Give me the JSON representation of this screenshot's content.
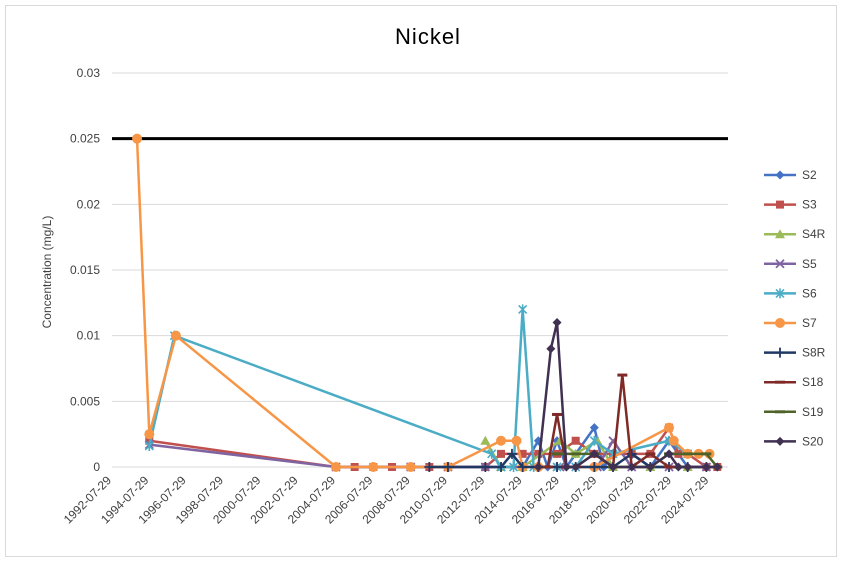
{
  "chart_data": {
    "type": "line",
    "title": "Nickel",
    "xlabel": "",
    "ylabel": "Concentration (mg/L)",
    "ylim": [
      0,
      0.03
    ],
    "yticks": [
      "0",
      "0.005",
      "0.01",
      "0.015",
      "0.02",
      "0.025",
      "0.03"
    ],
    "xlim": [
      "1992-07-29",
      "2025-07-29"
    ],
    "xticks": [
      "1992-07-29",
      "1994-07-29",
      "1996-07-29",
      "1998-07-29",
      "2000-07-29",
      "2002-07-29",
      "2004-07-29",
      "2006-07-29",
      "2008-07-29",
      "2010-07-29",
      "2012-07-29",
      "2014-07-29",
      "2016-07-29",
      "2018-07-29",
      "2020-07-29",
      "2022-07-29",
      "2024-07-29"
    ],
    "gridlines": "horizontal",
    "legend_position": "right",
    "reference_line": {
      "y": 0.025,
      "color": "#000000"
    },
    "series": [
      {
        "name": "S2",
        "color": "#4472c4",
        "marker": "diamond",
        "x": [
          "2004-07-29",
          "2006-07-29",
          "2008-07-29",
          "2010-07-29",
          "2012-07-29",
          "2014-07-29",
          "2015-06-01",
          "2015-12-01",
          "2016-06-01",
          "2016-12-01",
          "2017-06-01",
          "2018-06-01",
          "2018-12-01",
          "2019-06-01",
          "2020-06-01",
          "2021-06-01",
          "2022-06-01",
          "2022-12-01",
          "2023-06-01",
          "2024-06-01",
          "2025-01-01"
        ],
        "y": [
          0,
          0,
          0,
          0,
          0,
          0,
          0.002,
          0,
          0.002,
          0,
          0.001,
          0.003,
          0,
          0.001,
          0.001,
          0,
          0.002,
          0.001,
          0,
          0,
          0
        ]
      },
      {
        "name": "S3",
        "color": "#c0504d",
        "marker": "square",
        "x": [
          "1994-07-29",
          "2004-07-29",
          "2005-07-29",
          "2006-07-29",
          "2007-07-29",
          "2008-07-29",
          "2009-07-29",
          "2012-07-29",
          "2013-06-01",
          "2014-07-29",
          "2015-06-01",
          "2016-06-01",
          "2017-06-01",
          "2018-06-01",
          "2019-06-01",
          "2020-06-01",
          "2021-06-01",
          "2022-06-01",
          "2022-12-01",
          "2023-06-01",
          "2024-06-01",
          "2025-01-01"
        ],
        "y": [
          0.002,
          0,
          0,
          0,
          0,
          0,
          0,
          0,
          0.001,
          0.001,
          0.001,
          0.001,
          0.002,
          0.001,
          0.001,
          0.001,
          0.001,
          0.003,
          0.001,
          0.001,
          0,
          0
        ]
      },
      {
        "name": "S4R",
        "color": "#9bbb59",
        "marker": "triangle",
        "x": [
          "2012-07-29",
          "2013-06-01",
          "2014-07-29",
          "2016-07-29",
          "2017-06-01",
          "2018-07-29",
          "2019-06-01",
          "2021-06-01",
          "2023-06-01"
        ],
        "y": [
          0.002,
          0,
          0,
          0.002,
          0.001,
          0.002,
          0,
          0,
          0
        ]
      },
      {
        "name": "S5",
        "color": "#8064a2",
        "marker": "x",
        "x": [
          "1994-07-29",
          "2004-07-29",
          "2008-07-29",
          "2010-07-29",
          "2012-07-29",
          "2016-07-29",
          "2018-07-29",
          "2019-06-01",
          "2020-06-01",
          "2022-06-01",
          "2024-06-01"
        ],
        "y": [
          0.0017,
          0,
          0,
          0,
          0,
          0,
          0,
          0.002,
          0,
          0,
          0
        ]
      },
      {
        "name": "S6",
        "color": "#4bacc6",
        "marker": "asterisk",
        "x": [
          "1994-07-29",
          "1995-12-01",
          "2012-12-01",
          "2013-06-01",
          "2014-02-01",
          "2014-07-29",
          "2015-03-01",
          "2016-06-01",
          "2017-06-01",
          "2018-06-01",
          "2019-06-01",
          "2022-06-01",
          "2023-06-01"
        ],
        "y": [
          0.0016,
          0.01,
          0.001,
          0,
          0,
          0.012,
          0,
          0,
          0,
          0.002,
          0.001,
          0.002,
          0.001
        ]
      },
      {
        "name": "S7",
        "color": "#f79646",
        "marker": "circle",
        "x": [
          "1993-12-01",
          "1994-07-29",
          "1996-01-01",
          "2004-07-29",
          "2006-07-29",
          "2008-07-29",
          "2010-07-29",
          "2013-06-01",
          "2014-04-01",
          "2014-07-29",
          "2015-06-01",
          "2018-06-01",
          "2022-06-01",
          "2022-09-01",
          "2023-06-01",
          "2024-01-01",
          "2024-08-01"
        ],
        "y": [
          0.025,
          0.0025,
          0.01,
          0,
          0,
          0,
          0,
          0.002,
          0.002,
          0,
          0,
          0,
          0.003,
          0.002,
          0.001,
          0.001,
          0.001
        ]
      },
      {
        "name": "S8R",
        "color": "#1f3864",
        "marker": "plus",
        "x": [
          "2009-07-29",
          "2010-07-29",
          "2012-07-29",
          "2013-06-01",
          "2014-01-01",
          "2014-07-29",
          "2015-06-01",
          "2016-06-01",
          "2017-06-01",
          "2018-06-01",
          "2019-06-01",
          "2020-06-01",
          "2021-06-01",
          "2022-06-01",
          "2023-06-01",
          "2024-06-01"
        ],
        "y": [
          0,
          0,
          0,
          0,
          0.001,
          0,
          0,
          0,
          0,
          0,
          0,
          0.001,
          0,
          0,
          0,
          0
        ]
      },
      {
        "name": "S18",
        "color": "#7f2a26",
        "marker": "dash",
        "x": [
          "2015-12-01",
          "2016-06-01",
          "2016-12-01",
          "2017-06-01",
          "2018-06-01",
          "2019-06-01",
          "2019-12-01",
          "2020-06-01",
          "2021-06-01",
          "2022-06-01",
          "2023-06-01"
        ],
        "y": [
          0,
          0.004,
          0,
          0,
          0.001,
          0,
          0.007,
          0,
          0.001,
          0,
          0
        ]
      },
      {
        "name": "S19",
        "color": "#4f6228",
        "marker": "dash",
        "x": [
          "2016-06-01",
          "2017-06-01",
          "2018-06-01",
          "2019-06-01",
          "2020-06-01",
          "2021-06-01",
          "2022-06-01",
          "2023-06-01",
          "2024-06-01",
          "2025-01-01"
        ],
        "y": [
          0.001,
          0.001,
          0.001,
          0,
          0,
          0,
          0.001,
          0.001,
          0.001,
          0
        ]
      },
      {
        "name": "S20",
        "color": "#403152",
        "marker": "diamond",
        "x": [
          "2015-06-01",
          "2016-02-01",
          "2016-06-01",
          "2016-12-01",
          "2017-06-01",
          "2018-06-01",
          "2019-06-01",
          "2020-06-01",
          "2021-06-01",
          "2022-06-01",
          "2022-12-01",
          "2023-06-01",
          "2024-06-01",
          "2025-01-01"
        ],
        "y": [
          0,
          0.009,
          0.011,
          0,
          0,
          0.001,
          0,
          0,
          0,
          0.001,
          0,
          0,
          0,
          0
        ]
      }
    ]
  }
}
